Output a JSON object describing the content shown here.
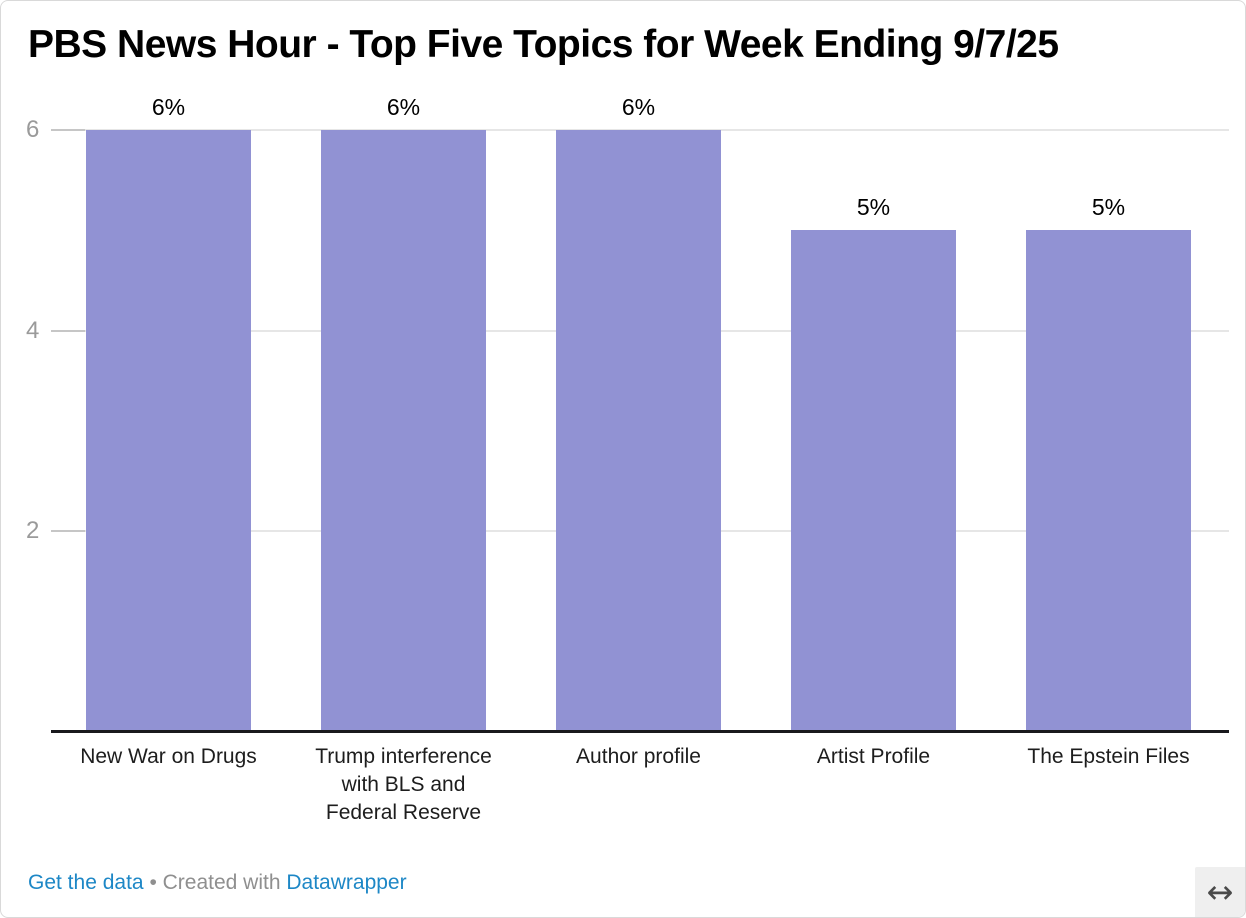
{
  "header": {
    "title": "PBS News Hour - Top Five Topics for Week Ending 9/7/25"
  },
  "chart_data": {
    "type": "bar",
    "title": "PBS News Hour - Top Five Topics for Week Ending 9/7/25",
    "categories": [
      "New War on Drugs",
      "Trump interference with BLS and Federal Reserve",
      "Author profile",
      "Artist Profile",
      "The Epstein Files"
    ],
    "category_lines": [
      [
        "New War on Drugs"
      ],
      [
        "Trump interference",
        "with BLS and",
        "Federal Reserve"
      ],
      [
        "Author profile"
      ],
      [
        "Artist Profile"
      ],
      [
        "The Epstein Files"
      ]
    ],
    "values": [
      6,
      6,
      6,
      5,
      5
    ],
    "value_labels": [
      "6%",
      "6%",
      "6%",
      "5%",
      "5%"
    ],
    "unit": "%",
    "xlabel": "",
    "ylabel": "",
    "ylim": [
      0,
      6
    ],
    "yticks": [
      2,
      4,
      6
    ],
    "grid": "horizontal",
    "legend": "none",
    "bar_color": "#9192d3"
  },
  "footer": {
    "get_data_label": "Get the data",
    "separator": "•",
    "created_with": "Created with",
    "brand": "Datawrapper",
    "link_color": "#1d87c6",
    "text_color": "#8f8f8f"
  },
  "resize": {
    "icon": "↔"
  }
}
